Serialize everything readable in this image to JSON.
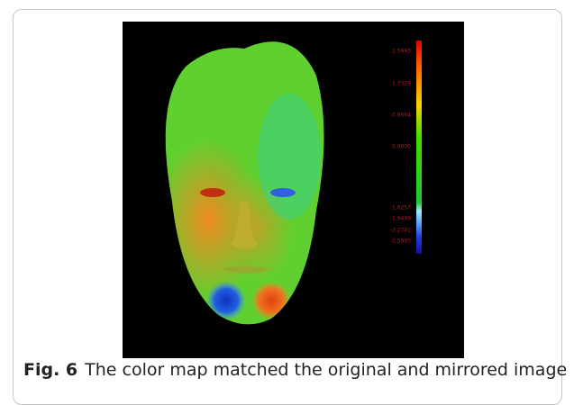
{
  "figure": {
    "colorbar_labels": [
      "2.5993",
      "1.7329",
      "0.8664",
      "0.0000",
      "-1.6257",
      "-1.9499",
      "-2.2741",
      "-2.5993"
    ],
    "caption": {
      "label": "Fig. 6",
      "text": "The color map matched the original and mirrored image"
    }
  }
}
